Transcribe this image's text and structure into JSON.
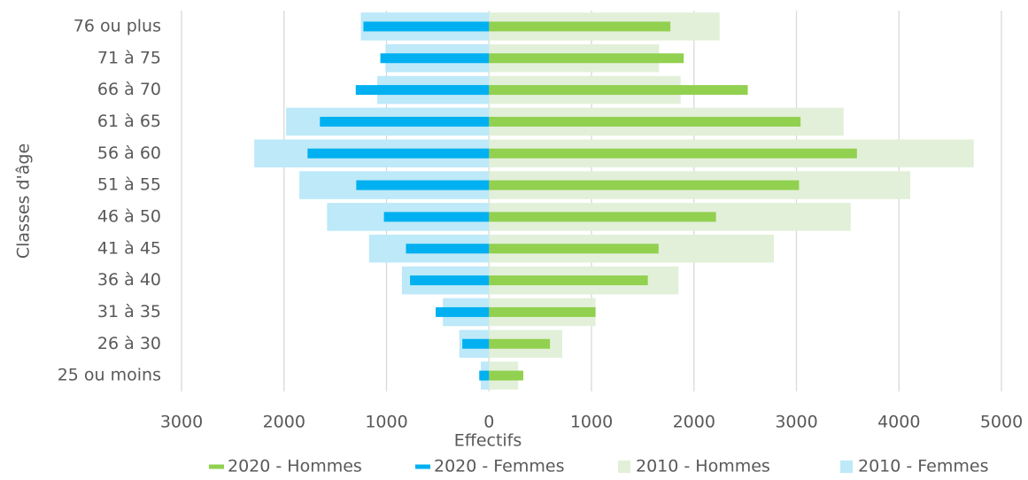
{
  "chart_data": {
    "type": "bar",
    "orientation": "horizontal",
    "categories": [
      "76 ou plus",
      "71 à 75",
      "66 à 70",
      "61 à 65",
      "56 à 60",
      "51 à 55",
      "46 à 50",
      "41 à 45",
      "36 à 40",
      "31 à 35",
      "26 à 30",
      "25 ou moins"
    ],
    "x_label": "Effectifs",
    "y_label": "Classes d'âge",
    "xlim": [
      -3000,
      5000
    ],
    "xticks": [
      {
        "value": -3000,
        "label": "3000"
      },
      {
        "value": -2000,
        "label": "2000"
      },
      {
        "value": -1000,
        "label": "1000"
      },
      0,
      1000,
      2000,
      3000,
      4000,
      5000
    ],
    "grid": true,
    "legend": "bottom",
    "series": [
      {
        "name": "2020 - Hommes",
        "color": "#92d050",
        "values": [
          1770,
          1900,
          2525,
          3040,
          3590,
          3025,
          2215,
          1655,
          1550,
          1040,
          595,
          335
        ]
      },
      {
        "name": "2020 - Femmes",
        "color": "#00b0f0",
        "values": [
          -1225,
          -1060,
          -1300,
          -1650,
          -1770,
          -1295,
          -1025,
          -810,
          -770,
          -520,
          -260,
          -95
        ]
      },
      {
        "name": "2010 - Hommes",
        "color": "#e2f0d9",
        "values": [
          2250,
          1660,
          1870,
          3460,
          4730,
          4110,
          3530,
          2780,
          1850,
          1040,
          715,
          285
        ]
      },
      {
        "name": "2010 - Femmes",
        "color": "#bde9f9",
        "values": [
          -1250,
          -1010,
          -1090,
          -1980,
          -2290,
          -1850,
          -1580,
          -1170,
          -850,
          -450,
          -290,
          -80
        ]
      }
    ]
  }
}
